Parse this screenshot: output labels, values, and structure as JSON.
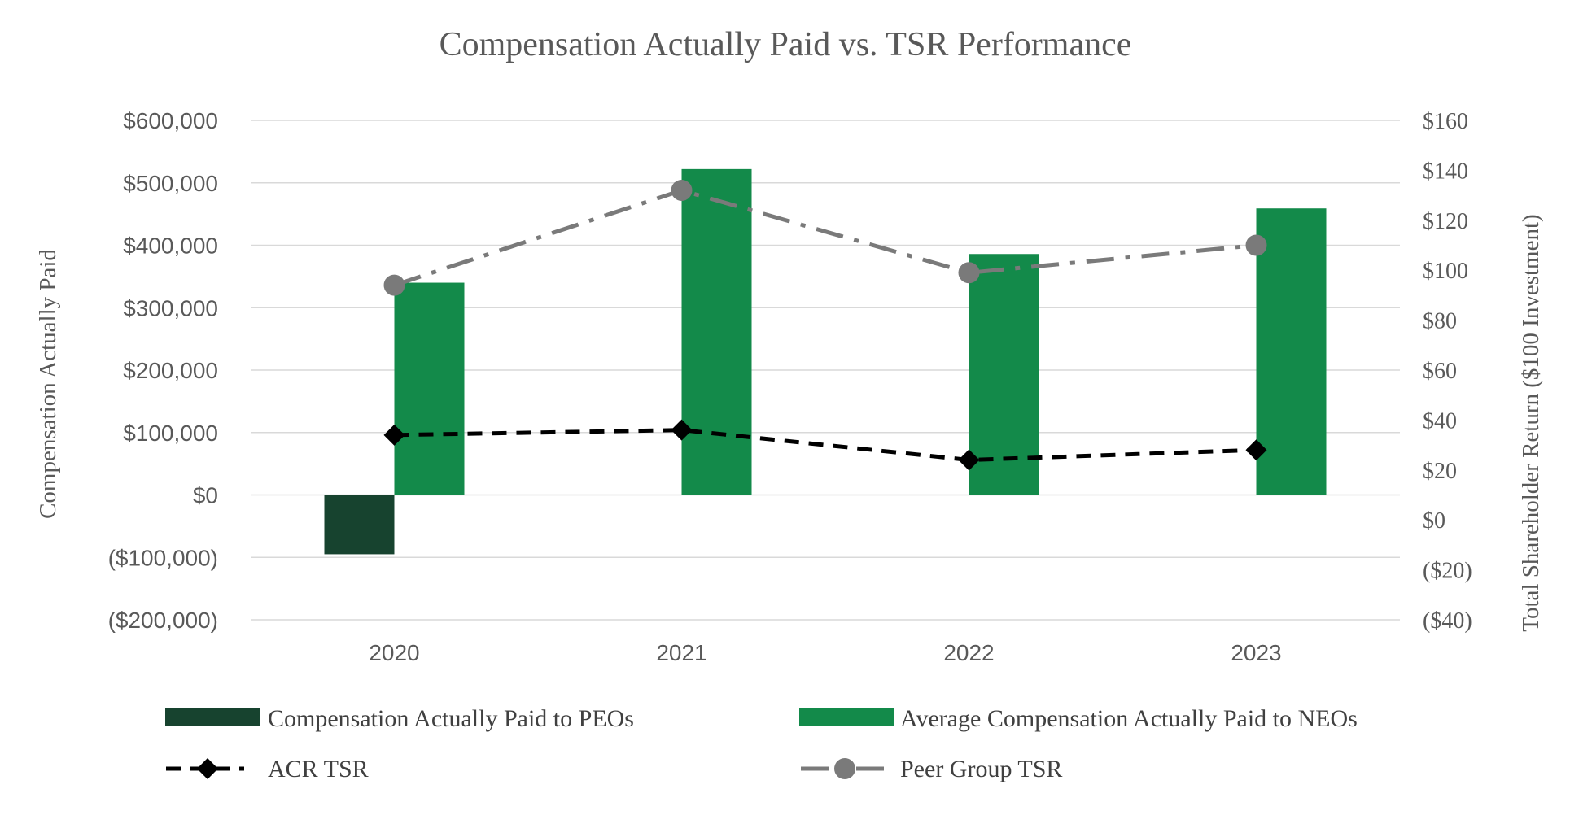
{
  "chart_data": {
    "type": "bar",
    "title": "Compensation Actually Paid vs. TSR Performance",
    "categories": [
      "2020",
      "2021",
      "2022",
      "2023"
    ],
    "ylabel": "Compensation Actually Paid",
    "ylabel_right": "Total Shareholder Return ($100 Investment)",
    "ylim": [
      -200000,
      600000
    ],
    "ylim_right": [
      -40,
      160
    ],
    "y_ticks": [
      600000,
      500000,
      400000,
      300000,
      200000,
      100000,
      0,
      -100000,
      -200000
    ],
    "y_tick_labels": [
      "$600,000",
      "$500,000",
      "$400,000",
      "$300,000",
      "$200,000",
      "$100,000",
      "$0",
      "($100,000)",
      "($200,000)"
    ],
    "y_right_ticks": [
      160,
      140,
      120,
      100,
      80,
      60,
      40,
      20,
      0,
      -20,
      -40
    ],
    "y_right_tick_labels": [
      "$160",
      "$140",
      "$120",
      "$100",
      "$80",
      "$60",
      "$40",
      "$20",
      "$0",
      "($20)",
      "($40)"
    ],
    "grid": true,
    "legend_position": "bottom",
    "series": [
      {
        "name": "Compensation Actually Paid to PEOs",
        "kind": "bar",
        "axis": "left",
        "color": "#17432f",
        "values": [
          -95000,
          null,
          null,
          null
        ]
      },
      {
        "name": "Average Compensation Actually Paid to NEOs",
        "kind": "bar",
        "axis": "left",
        "color": "#138a4a",
        "values": [
          340000,
          522000,
          386000,
          459000
        ]
      },
      {
        "name": "ACR TSR",
        "kind": "line",
        "axis": "right",
        "color": "#000000",
        "dash": "dashed",
        "marker": "diamond",
        "values": [
          34,
          36,
          24,
          28
        ]
      },
      {
        "name": "Peer Group TSR",
        "kind": "line",
        "axis": "right",
        "color": "#7a7a7a",
        "dash": "dash-dot",
        "marker": "circle",
        "values": [
          94,
          132,
          99,
          110
        ]
      }
    ]
  }
}
